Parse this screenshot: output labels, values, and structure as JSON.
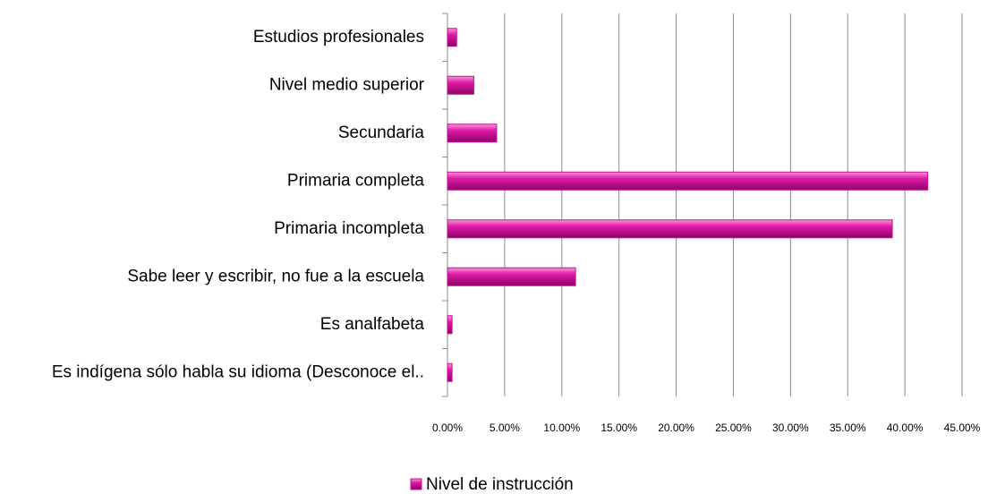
{
  "chart_data": {
    "type": "bar",
    "orientation": "horizontal",
    "categories": [
      "Estudios profesionales",
      "Nivel medio superior",
      "Secundaria",
      "Primaria completa",
      "Primaria incompleta",
      "Sabe leer y escribir, no fue a la escuela",
      "Es analfabeta",
      "Es indígena sólo habla su idioma (Desconoce el.."
    ],
    "series": [
      {
        "name": "Nivel de instrucción",
        "color": "#cc0a96",
        "values": [
          0.8,
          2.3,
          4.3,
          42.0,
          38.9,
          11.2,
          0.4,
          0.4
        ]
      }
    ],
    "xlim": [
      0,
      45
    ],
    "xticks": [
      {
        "value": 0,
        "label": "0.00%"
      },
      {
        "value": 5,
        "label": "5.00%"
      },
      {
        "value": 10,
        "label": "10.00%"
      },
      {
        "value": 15,
        "label": "15.00%"
      },
      {
        "value": 20,
        "label": "20.00%"
      },
      {
        "value": 25,
        "label": "25.00%"
      },
      {
        "value": 30,
        "label": "30.00%"
      },
      {
        "value": 35,
        "label": "35.00%"
      },
      {
        "value": 40,
        "label": "40.00%"
      },
      {
        "value": 45,
        "label": "45.00%"
      }
    ],
    "grid": true,
    "legend": "bottom"
  }
}
